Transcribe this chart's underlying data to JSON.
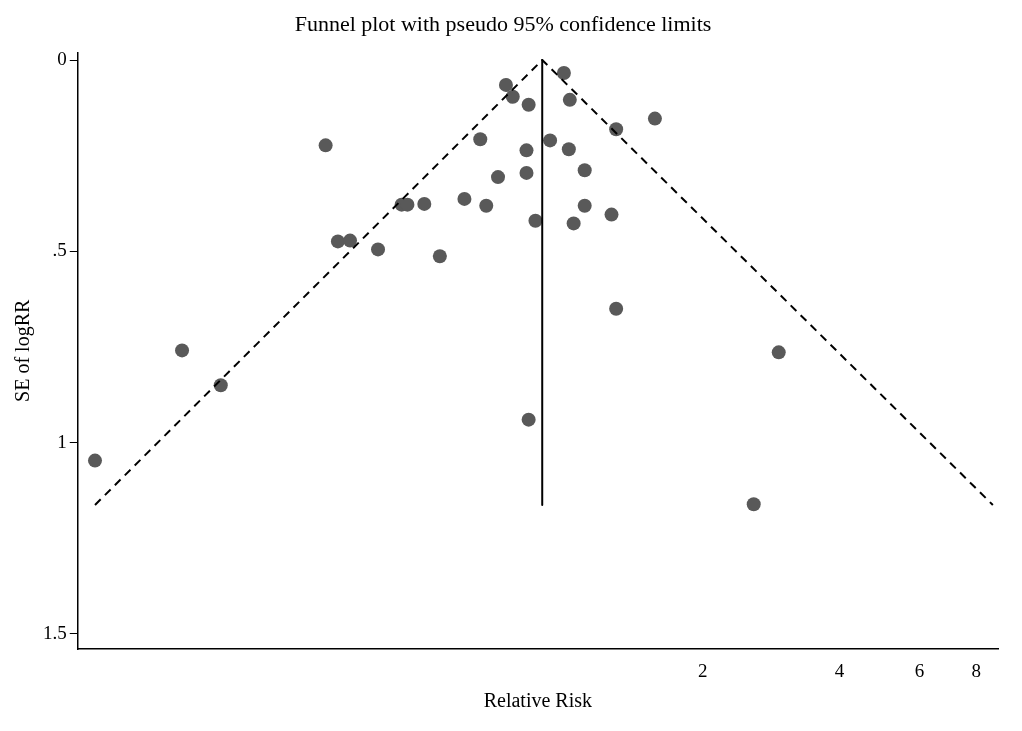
{
  "chart_data": {
    "type": "scatter",
    "title": "Funnel plot with pseudo 95% confidence limits",
    "xlabel": "Relative Risk",
    "ylabel": "SE of logRR",
    "log": "x",
    "grid": false,
    "legend": false,
    "marker": "circle",
    "xlim": [
      0.0843,
      8.93
    ],
    "xticks": [
      2,
      4,
      6,
      8
    ],
    "ylim": [
      1.54,
      -0.02
    ],
    "yticks": [
      {
        "value": 0,
        "label": "0"
      },
      {
        "value": 0.5,
        "label": ".5"
      },
      {
        "value": 1,
        "label": "1"
      },
      {
        "value": 1.5,
        "label": "1.5"
      }
    ],
    "series": [
      {
        "type": "line",
        "color": "#000000",
        "line_style": "dashed",
        "marker": "none",
        "x": [
          0.092,
          0.887,
          8.7
        ],
        "values": [
          1.163,
          0,
          1.163
        ]
      },
      {
        "type": "line",
        "color": "#000000",
        "line_style": "solid",
        "marker": "none",
        "x": [
          0.887,
          0.887
        ],
        "values": [
          0,
          1.163
        ]
      },
      {
        "color": "#595959",
        "x": [
          0.092,
          0.143,
          0.174,
          0.296,
          0.315,
          0.335,
          0.386,
          0.435,
          0.448,
          0.488,
          0.528,
          0.598,
          0.648,
          0.668,
          0.709,
          0.738,
          0.764,
          0.828,
          0.819,
          0.819,
          0.857,
          0.828,
          0.923,
          0.99,
          1.02,
          1.015,
          1.1,
          1.1,
          1.04,
          1.26,
          1.29,
          1.57,
          1.29,
          2.94,
          2.59
        ],
        "values": [
          1.047,
          0.759,
          0.85,
          0.223,
          0.474,
          0.472,
          0.495,
          0.378,
          0.378,
          0.376,
          0.513,
          0.363,
          0.207,
          0.381,
          0.306,
          0.065,
          0.096,
          0.117,
          0.236,
          0.295,
          0.42,
          0.94,
          0.21,
          0.034,
          0.104,
          0.233,
          0.288,
          0.381,
          0.427,
          0.404,
          0.181,
          0.153,
          0.65,
          0.764,
          1.161
        ]
      }
    ]
  }
}
